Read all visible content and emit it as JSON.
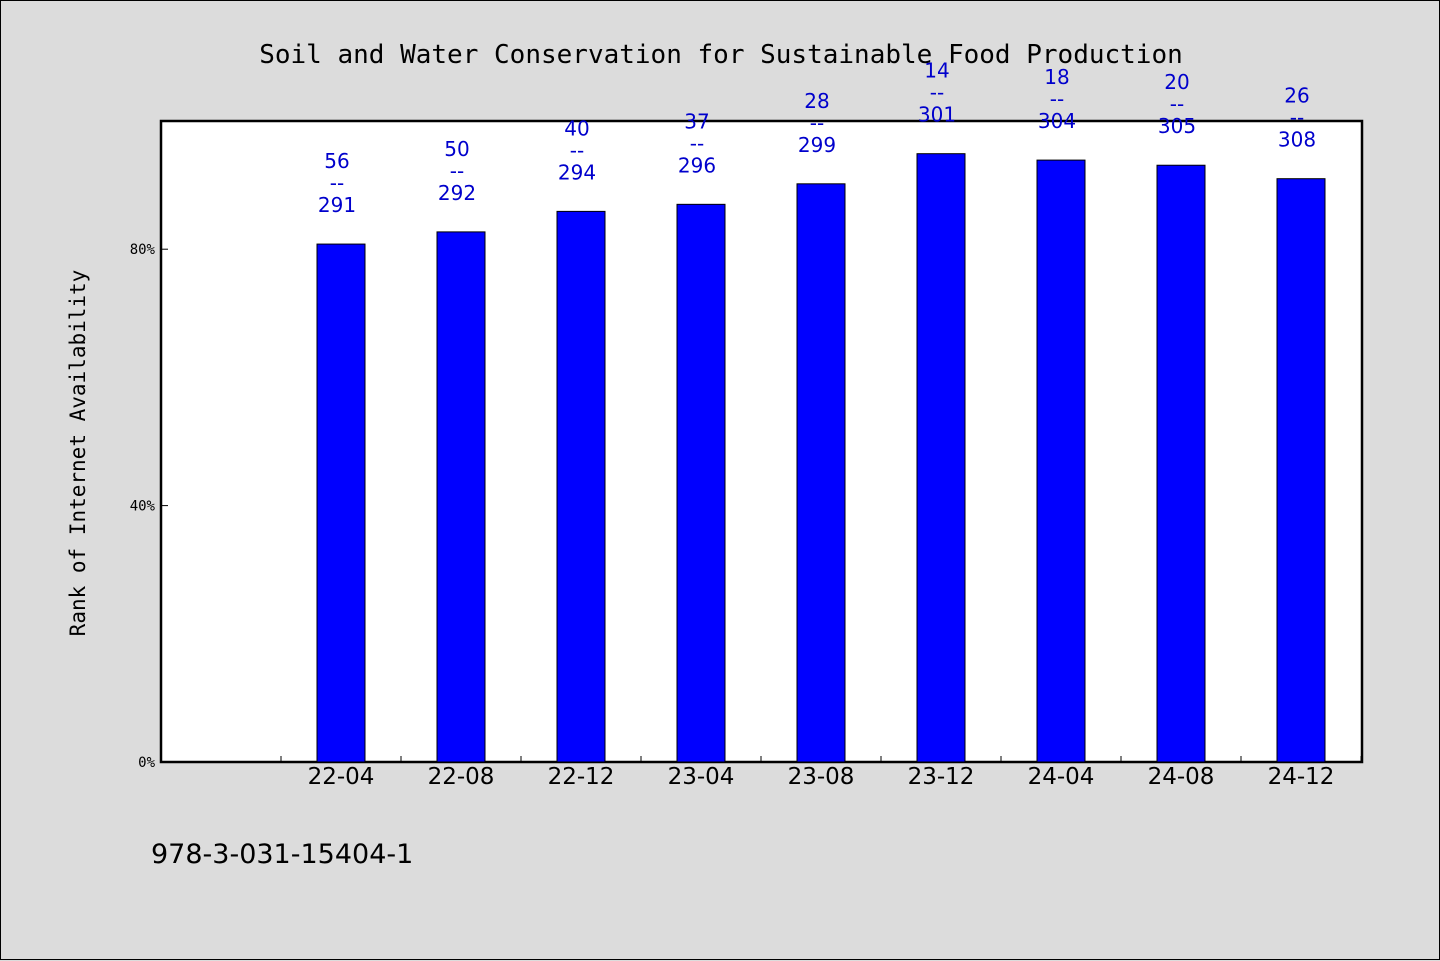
{
  "chart_data": {
    "type": "bar",
    "title": "Soil and Water Conservation for Sustainable Food Production",
    "ylabel": "Rank of Internet Availability",
    "xlabel": "",
    "categories": [
      "22-04",
      "22-08",
      "22-12",
      "23-04",
      "23-08",
      "23-12",
      "24-04",
      "24-08",
      "24-12"
    ],
    "values": [
      80.8,
      82.7,
      85.9,
      87.0,
      90.2,
      94.9,
      93.9,
      93.1,
      91.0
    ],
    "ylim": [
      0,
      100
    ],
    "yticks": [
      0,
      40,
      80
    ],
    "ytick_labels": [
      "0%",
      "40%",
      "80%"
    ],
    "data_labels": [
      {
        "top": "56",
        "sep": "--",
        "bottom": "291"
      },
      {
        "top": "50",
        "sep": "--",
        "bottom": "292"
      },
      {
        "top": "40",
        "sep": "--",
        "bottom": "294"
      },
      {
        "top": "37",
        "sep": "--",
        "bottom": "296"
      },
      {
        "top": "28",
        "sep": "--",
        "bottom": "299"
      },
      {
        "top": "14",
        "sep": "--",
        "bottom": "301"
      },
      {
        "top": "18",
        "sep": "--",
        "bottom": "304"
      },
      {
        "top": "20",
        "sep": "--",
        "bottom": "305"
      },
      {
        "top": "26",
        "sep": "--",
        "bottom": "308"
      }
    ],
    "bar_color": "#0000ff",
    "label_color": "#0000cc",
    "grid": false,
    "legend": "none"
  },
  "footer": "978-3-031-15404-1",
  "colors": {
    "background": "#dcdcdc",
    "plot_background": "#ffffff"
  }
}
